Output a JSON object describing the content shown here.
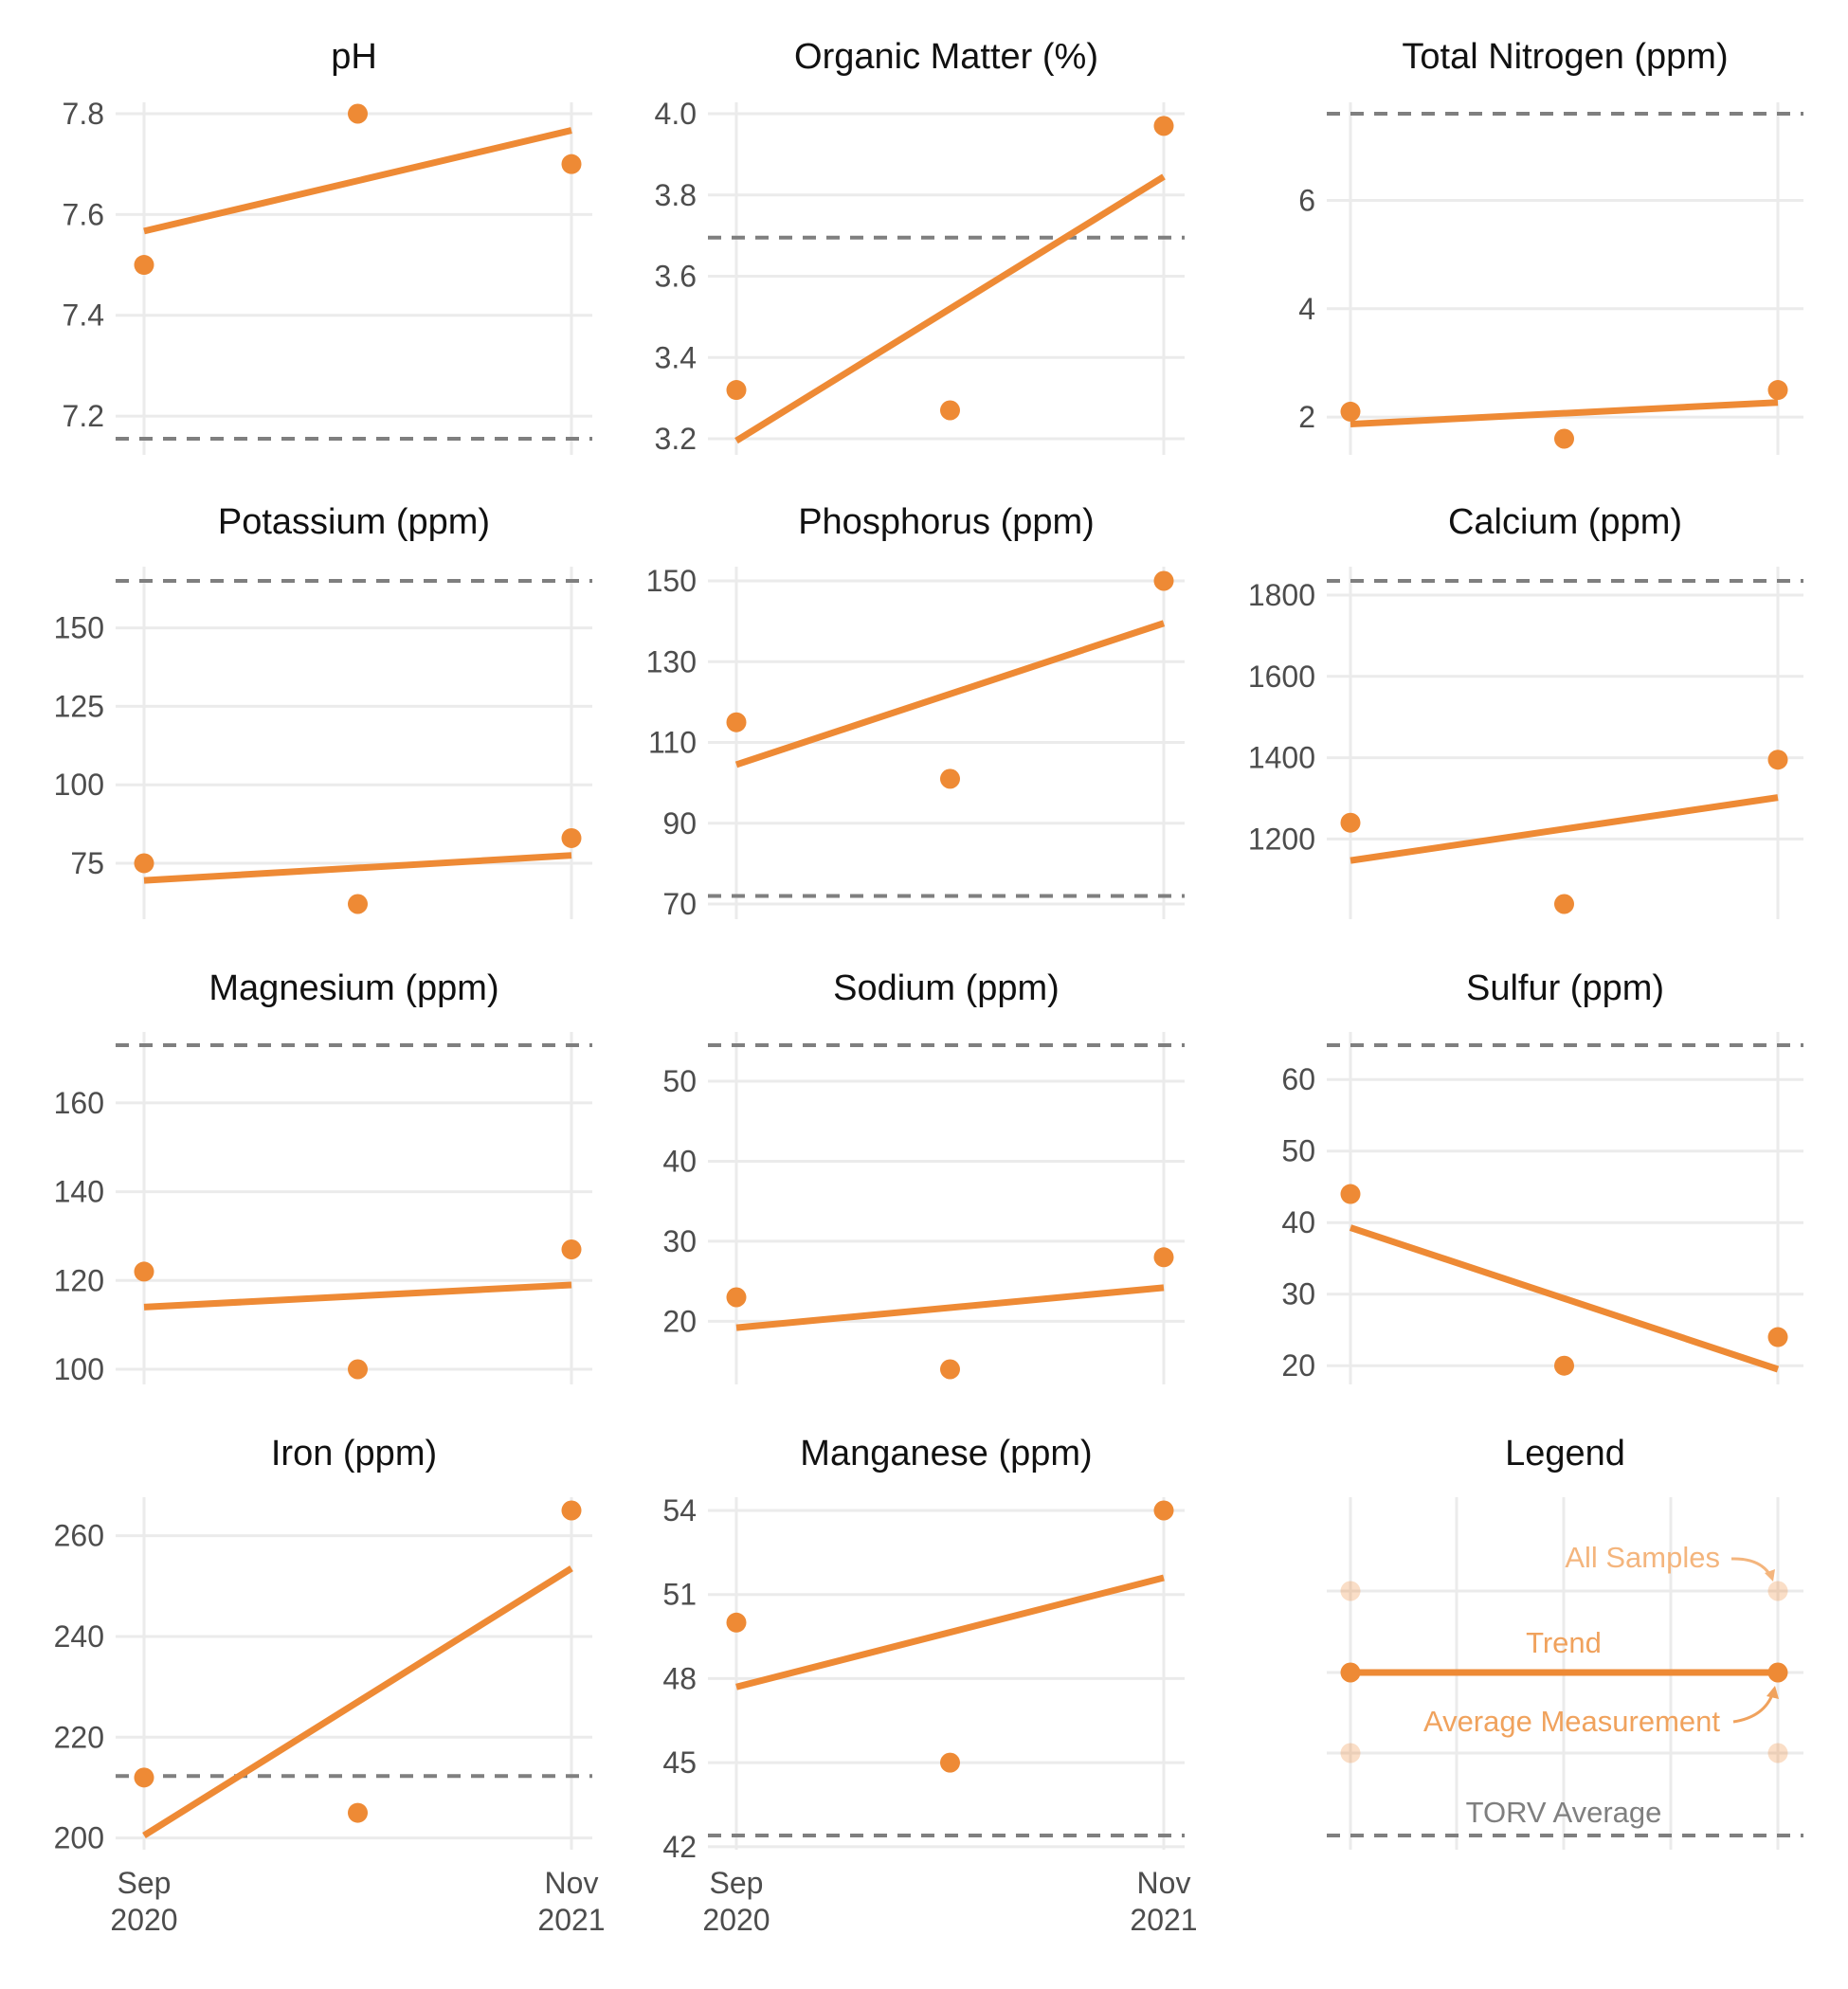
{
  "colors": {
    "accent": "#ee8a35",
    "reference": "#7f7f7f",
    "grid": "#ebebeb"
  },
  "x_axis": {
    "ticks": [
      {
        "pos": 0,
        "line1": "Sep",
        "line2": "2020"
      },
      {
        "pos": 1,
        "line1": "Nov",
        "line2": "2021"
      }
    ]
  },
  "chart_data": [
    {
      "type": "scatter",
      "title": "pH",
      "ylim": [
        7.155,
        7.8
      ],
      "yticks": [
        7.2,
        7.4,
        7.6,
        7.8
      ],
      "ytick_labels": [
        "7.2",
        "7.4",
        "7.6",
        "7.8"
      ],
      "points": [
        [
          0,
          7.5
        ],
        [
          0.5,
          7.8
        ],
        [
          1,
          7.7
        ]
      ],
      "trend": [
        [
          0,
          7.567
        ],
        [
          1,
          7.767
        ]
      ],
      "reference": 7.155
    },
    {
      "type": "scatter",
      "title": "Organic Matter (%)",
      "ylim": [
        3.2,
        4.0
      ],
      "yticks": [
        3.2,
        3.4,
        3.6,
        3.8,
        4.0
      ],
      "ytick_labels": [
        "3.2",
        "3.4",
        "3.6",
        "3.8",
        "4.0"
      ],
      "points": [
        [
          0,
          3.32
        ],
        [
          0.5,
          3.27
        ],
        [
          1,
          3.97
        ]
      ],
      "trend": [
        [
          0,
          3.195
        ],
        [
          1,
          3.845
        ]
      ],
      "reference": 3.695
    },
    {
      "type": "scatter",
      "title": "Total Nitrogen (ppm)",
      "ylim": [
        1.6,
        7.6
      ],
      "yticks": [
        2,
        4,
        6
      ],
      "ytick_labels": [
        "2",
        "4",
        "6"
      ],
      "points": [
        [
          0,
          2.1
        ],
        [
          0.5,
          1.6
        ],
        [
          1,
          2.5
        ]
      ],
      "trend": [
        [
          0,
          1.87
        ],
        [
          1,
          2.27
        ]
      ],
      "reference": 7.6
    },
    {
      "type": "scatter",
      "title": "Potassium (ppm)",
      "ylim": [
        62,
        165
      ],
      "yticks": [
        75,
        100,
        125,
        150
      ],
      "ytick_labels": [
        "75",
        "100",
        "125",
        "150"
      ],
      "points": [
        [
          0,
          75
        ],
        [
          0.5,
          62
        ],
        [
          1,
          83
        ]
      ],
      "trend": [
        [
          0,
          69.5
        ],
        [
          1,
          77.5
        ]
      ],
      "reference": 165
    },
    {
      "type": "scatter",
      "title": "Phosphorus (ppm)",
      "ylim": [
        70,
        150
      ],
      "yticks": [
        70,
        90,
        110,
        130,
        150
      ],
      "ytick_labels": [
        "70",
        "90",
        "110",
        "130",
        "150"
      ],
      "points": [
        [
          0,
          115
        ],
        [
          0.5,
          101
        ],
        [
          1,
          150
        ]
      ],
      "trend": [
        [
          0,
          104.5
        ],
        [
          1,
          139.5
        ]
      ],
      "reference": 72
    },
    {
      "type": "scatter",
      "title": "Calcium (ppm)",
      "ylim": [
        1040,
        1835
      ],
      "yticks": [
        1200,
        1400,
        1600,
        1800
      ],
      "ytick_labels": [
        "1200",
        "1400",
        "1600",
        "1800"
      ],
      "points": [
        [
          0,
          1240
        ],
        [
          0.5,
          1040
        ],
        [
          1,
          1395
        ]
      ],
      "trend": [
        [
          0,
          1147
        ],
        [
          1,
          1302
        ]
      ],
      "reference": 1835
    },
    {
      "type": "scatter",
      "title": "Magnesium (ppm)",
      "ylim": [
        100,
        173
      ],
      "yticks": [
        100,
        120,
        140,
        160
      ],
      "ytick_labels": [
        "100",
        "120",
        "140",
        "160"
      ],
      "points": [
        [
          0,
          122
        ],
        [
          0.5,
          100
        ],
        [
          1,
          127
        ]
      ],
      "trend": [
        [
          0,
          114
        ],
        [
          1,
          119
        ]
      ],
      "reference": 173
    },
    {
      "type": "scatter",
      "title": "Sodium (ppm)",
      "ylim": [
        14,
        54.5
      ],
      "yticks": [
        20,
        30,
        40,
        50
      ],
      "ytick_labels": [
        "20",
        "30",
        "40",
        "50"
      ],
      "points": [
        [
          0,
          23
        ],
        [
          0.5,
          14
        ],
        [
          1,
          28
        ]
      ],
      "trend": [
        [
          0,
          19.2
        ],
        [
          1,
          24.2
        ]
      ],
      "reference": 54.5
    },
    {
      "type": "scatter",
      "title": "Sulfur (ppm)",
      "ylim": [
        19.5,
        64.8
      ],
      "yticks": [
        20,
        30,
        40,
        50,
        60
      ],
      "ytick_labels": [
        "20",
        "30",
        "40",
        "50",
        "60"
      ],
      "points": [
        [
          0,
          44
        ],
        [
          0.5,
          20
        ],
        [
          1,
          24
        ]
      ],
      "trend": [
        [
          0,
          39.3
        ],
        [
          1,
          19.5
        ]
      ],
      "reference": 64.8
    },
    {
      "type": "scatter",
      "title": "Iron (ppm)",
      "ylim": [
        200.5,
        265
      ],
      "yticks": [
        200,
        220,
        240,
        260
      ],
      "ytick_labels": [
        "200",
        "220",
        "240",
        "260"
      ],
      "points": [
        [
          0,
          212
        ],
        [
          0.5,
          205
        ],
        [
          1,
          265
        ]
      ],
      "trend": [
        [
          0,
          200.5
        ],
        [
          1,
          253.5
        ]
      ],
      "reference": 212.3
    },
    {
      "type": "scatter",
      "title": "Manganese (ppm)",
      "ylim": [
        42.4,
        54
      ],
      "yticks": [
        42,
        45,
        48,
        51,
        54
      ],
      "ytick_labels": [
        "42",
        "45",
        "48",
        "51",
        "54"
      ],
      "points": [
        [
          0,
          50
        ],
        [
          0.5,
          45
        ],
        [
          1,
          54
        ]
      ],
      "trend": [
        [
          0,
          47.7
        ],
        [
          1,
          51.6
        ]
      ],
      "reference": 42.4
    }
  ],
  "legend": {
    "title": "Legend",
    "all_samples": "All Samples",
    "trend": "Trend",
    "average": "Average Measurement",
    "torv": "TORV Average"
  }
}
